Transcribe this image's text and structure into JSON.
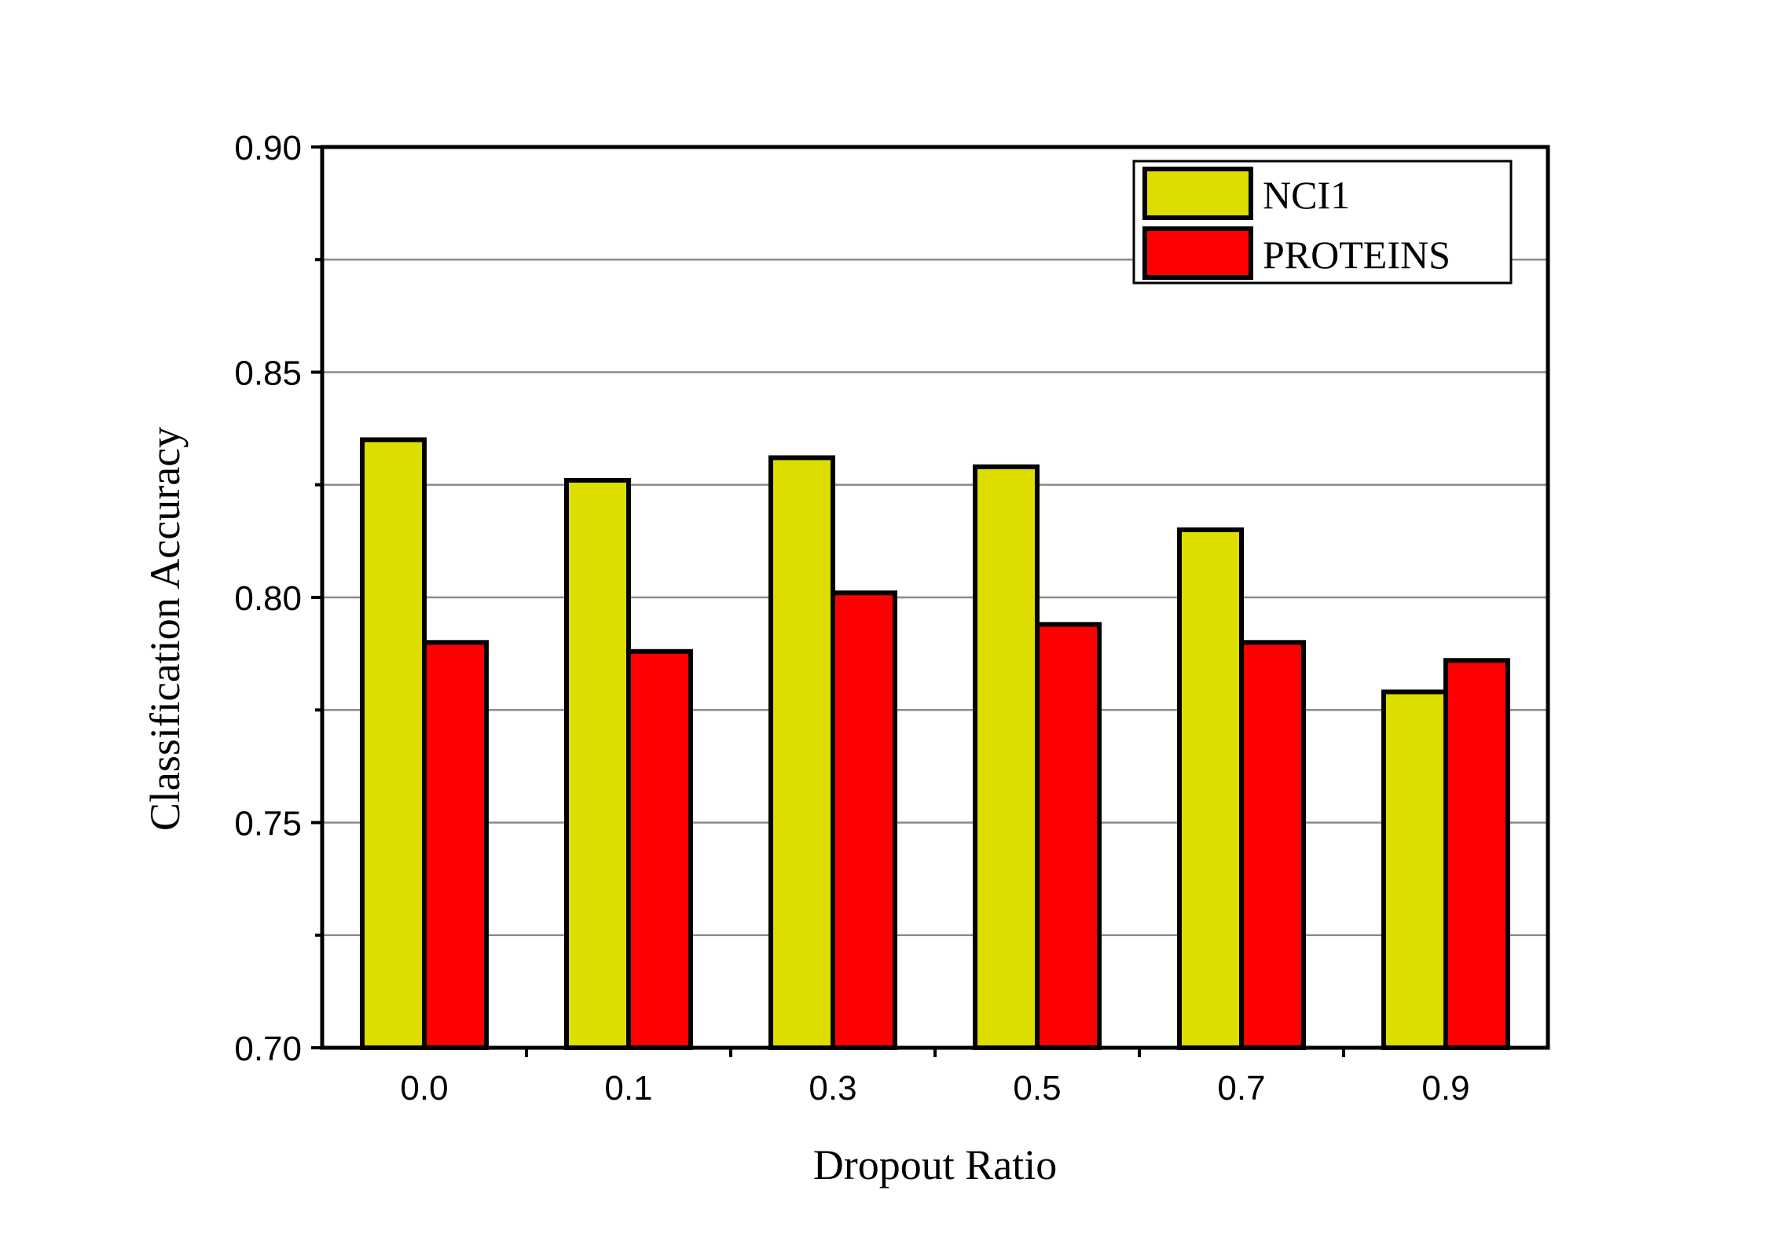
{
  "chart_data": {
    "type": "bar",
    "title": "",
    "xlabel": "Dropout Ratio",
    "ylabel": "Classification Accuracy",
    "categories": [
      "0.0",
      "0.1",
      "0.3",
      "0.5",
      "0.7",
      "0.9"
    ],
    "series": [
      {
        "name": "NCI1",
        "color": "#dddd00",
        "values": [
          0.835,
          0.826,
          0.831,
          0.829,
          0.815,
          0.779
        ]
      },
      {
        "name": "PROTEINS",
        "color": "#ff0000",
        "values": [
          0.79,
          0.788,
          0.801,
          0.794,
          0.79,
          0.786
        ]
      }
    ],
    "ylim": [
      0.7,
      0.9
    ],
    "yticks": [
      "0.70",
      "0.75",
      "0.80",
      "0.85",
      "0.90"
    ],
    "grid": true,
    "legend_position": "top-right"
  }
}
